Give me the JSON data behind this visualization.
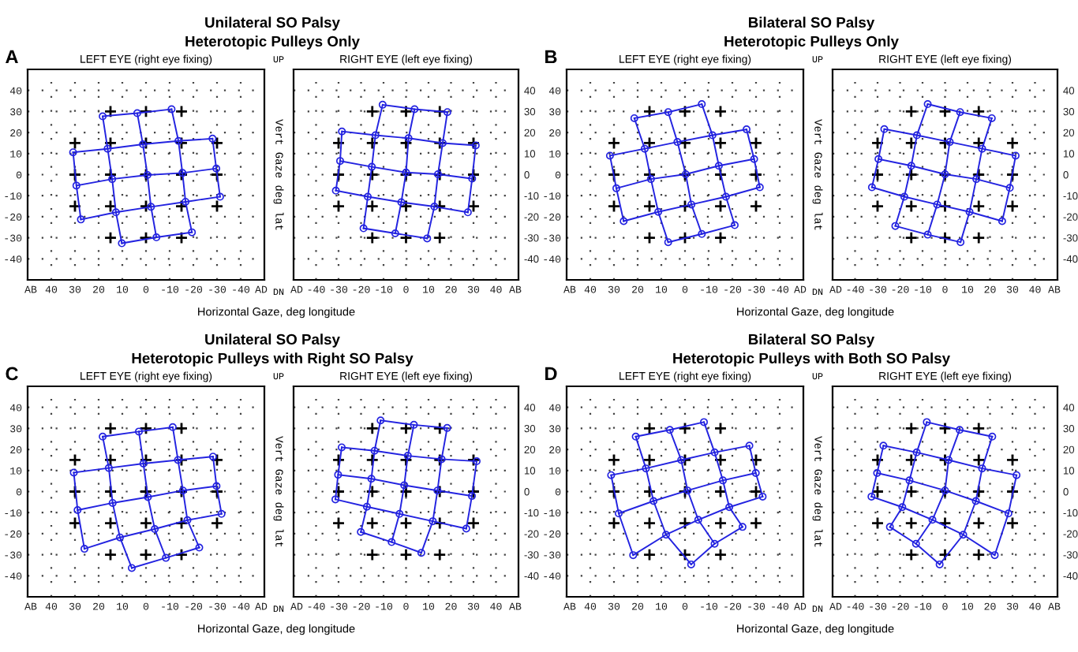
{
  "chart_data": [
    {
      "type": "line",
      "title": "LEFT EYE (right eye fixing)",
      "xlabel": "Horizontal Gaze, deg longitude",
      "annotations": [
        "A",
        "Unilateral SO Palsy",
        "Heterotopic Pulleys Only",
        "UP",
        "DN",
        "Vert Gaze deg lat",
        "AB",
        "AD"
      ],
      "xlim": [
        50,
        -50
      ],
      "xticks": [
        40,
        30,
        20,
        10,
        0,
        -10,
        -20,
        -30,
        -40
      ],
      "ylim": [
        -50,
        50
      ],
      "yticks": [
        40,
        30,
        20,
        10,
        0,
        -10,
        -20,
        -30,
        -40
      ],
      "grid": true,
      "series": [
        {
          "type": "scatter",
          "color": "#000000",
          "marker": "cross",
          "x": [
            15,
            0,
            -15,
            30,
            15,
            0,
            -15,
            -30,
            30,
            15,
            0,
            -15,
            -30,
            30,
            15,
            0,
            -15,
            -30,
            15,
            0,
            -15
          ],
          "values": [
            30,
            30,
            30,
            15,
            15,
            15,
            15,
            15,
            0,
            0,
            0,
            0,
            0,
            -15,
            -15,
            -15,
            -15,
            -15,
            -30,
            -30,
            -30
          ]
        },
        {
          "color": "#2323e0",
          "marker": "circle",
          "x": [
            18.3,
            3.7,
            -10.8
          ],
          "values": [
            27.7,
            29.2,
            31.1
          ]
        },
        {
          "color": "#2323e0",
          "marker": "circle",
          "x": [
            30.8,
            16.2,
            1.3,
            -13.7,
            -28.1
          ],
          "values": [
            10.6,
            12.3,
            14.4,
            16.0,
            17.1
          ]
        },
        {
          "color": "#2323e0",
          "marker": "circle",
          "x": [
            29.4,
            14.3,
            -0.6,
            -15.4,
            -29.7
          ],
          "values": [
            -5.2,
            -2.1,
            -0.2,
            0.8,
            2.9
          ]
        },
        {
          "color": "#2323e0",
          "marker": "circle",
          "x": [
            27.5,
            12.7,
            -2.1,
            -16.7,
            -31.3
          ],
          "values": [
            -21.3,
            -17.9,
            -15.3,
            -12.9,
            -10.5
          ]
        },
        {
          "color": "#2323e0",
          "marker": "circle",
          "x": [
            10.2,
            -4.4,
            -19.4
          ],
          "values": [
            -32.6,
            -29.8,
            -27.4
          ]
        },
        {
          "color": "#2323e0",
          "marker": "none",
          "x": [
            30.8,
            29.4,
            27.5
          ],
          "values": [
            10.6,
            -5.2,
            -21.3
          ]
        },
        {
          "color": "#2323e0",
          "marker": "none",
          "x": [
            18.3,
            16.2,
            14.3,
            12.7,
            10.2
          ],
          "values": [
            27.7,
            12.3,
            -2.1,
            -17.9,
            -32.6
          ]
        },
        {
          "color": "#2323e0",
          "marker": "none",
          "x": [
            3.7,
            1.3,
            -0.6,
            -2.1,
            -4.4
          ],
          "values": [
            29.2,
            14.4,
            -0.2,
            -15.3,
            -29.8
          ]
        },
        {
          "color": "#2323e0",
          "marker": "none",
          "x": [
            -10.8,
            -13.7,
            -15.4,
            -16.7,
            -19.4
          ],
          "values": [
            31.1,
            16.0,
            0.8,
            -12.9,
            -27.4
          ]
        },
        {
          "color": "#2323e0",
          "marker": "none",
          "x": [
            -28.1,
            -29.7,
            -31.3
          ],
          "values": [
            17.1,
            2.9,
            -10.5
          ]
        }
      ]
    },
    {
      "type": "line",
      "title": "RIGHT EYE (left eye fixing)",
      "annotations": [
        "AD",
        "AB"
      ],
      "xlim": [
        -50,
        50
      ],
      "xticks": [
        -40,
        -30,
        -20,
        -10,
        0,
        10,
        20,
        30,
        40
      ],
      "ylim": [
        -50,
        50
      ],
      "yticks": [
        40,
        30,
        20,
        10,
        0,
        -10,
        -20,
        -30,
        -40
      ],
      "grid": true,
      "series": [
        {
          "type": "scatter",
          "color": "#000000",
          "marker": "cross",
          "x": [
            -15,
            0,
            15,
            -30,
            -15,
            0,
            15,
            30,
            -30,
            -15,
            0,
            15,
            30,
            -30,
            -15,
            0,
            15,
            30,
            -15,
            0,
            15
          ],
          "values": [
            30,
            30,
            30,
            15,
            15,
            15,
            15,
            15,
            0,
            0,
            0,
            0,
            0,
            -15,
            -15,
            -15,
            -15,
            -15,
            -30,
            -30,
            -30
          ]
        },
        {
          "color": "#2323e0",
          "marker": "circle",
          "x": [
            -10.4,
            3.8,
            18.4
          ],
          "values": [
            33.2,
            31.1,
            29.7
          ]
        },
        {
          "color": "#2323e0",
          "marker": "circle",
          "x": [
            -28.5,
            -13.6,
            1.1,
            16.3,
            31.0
          ],
          "values": [
            20.5,
            18.7,
            17.3,
            15.0,
            13.9
          ]
        },
        {
          "color": "#2323e0",
          "marker": "circle",
          "x": [
            -29.3,
            -15.2,
            0,
            14.2,
            29.4
          ],
          "values": [
            6.5,
            3.7,
            1.0,
            0.2,
            -1.9
          ]
        },
        {
          "color": "#2323e0",
          "marker": "circle",
          "x": [
            -31.2,
            -17.0,
            -2.1,
            12.6,
            27.5
          ],
          "values": [
            -7.6,
            -10.5,
            -13.1,
            -15.2,
            -17.9
          ]
        },
        {
          "color": "#2323e0",
          "marker": "circle",
          "x": [
            -18.9,
            -4.8,
            9.4
          ],
          "values": [
            -25.5,
            -27.9,
            -30.3
          ]
        },
        {
          "color": "#2323e0",
          "marker": "none",
          "x": [
            -28.5,
            -29.3,
            -31.2
          ],
          "values": [
            20.5,
            6.5,
            -7.6
          ]
        },
        {
          "color": "#2323e0",
          "marker": "none",
          "x": [
            -10.4,
            -13.6,
            -15.2,
            -17.0,
            -18.9
          ],
          "values": [
            33.2,
            18.7,
            3.7,
            -10.5,
            -25.5
          ]
        },
        {
          "color": "#2323e0",
          "marker": "none",
          "x": [
            3.8,
            1.1,
            0,
            -2.1,
            -4.8
          ],
          "values": [
            31.1,
            17.3,
            1.0,
            -13.1,
            -27.9
          ]
        },
        {
          "color": "#2323e0",
          "marker": "none",
          "x": [
            18.4,
            16.3,
            14.2,
            12.6,
            9.4
          ],
          "values": [
            29.7,
            15.0,
            0.2,
            -15.2,
            -30.3
          ]
        },
        {
          "color": "#2323e0",
          "marker": "none",
          "x": [
            31.0,
            29.4,
            27.5
          ],
          "values": [
            13.9,
            -1.9,
            -17.9
          ]
        }
      ]
    },
    {
      "type": "line",
      "title": "LEFT EYE (right eye fixing)",
      "xlabel": "Horizontal Gaze, deg longitude",
      "annotations": [
        "B",
        "Bilateral SO Palsy",
        "Heterotopic Pulleys Only",
        "UP",
        "DN",
        "Vert Gaze deg lat",
        "AB",
        "AD"
      ],
      "xlim": [
        50,
        -50
      ],
      "xticks": [
        40,
        30,
        20,
        10,
        0,
        -10,
        -20,
        -30,
        -40
      ],
      "ylim": [
        -50,
        50
      ],
      "yticks": [
        40,
        30,
        20,
        10,
        0,
        -10,
        -20,
        -30,
        -40
      ],
      "grid": true,
      "series": [
        {
          "type": "scatter",
          "color": "#000000",
          "marker": "cross",
          "x": [
            15,
            0,
            -15,
            30,
            15,
            0,
            -15,
            -30,
            30,
            15,
            0,
            -15,
            -30,
            30,
            15,
            0,
            -15,
            -30,
            15,
            0,
            -15
          ],
          "values": [
            30,
            30,
            30,
            15,
            15,
            15,
            15,
            15,
            0,
            0,
            0,
            0,
            0,
            -15,
            -15,
            -15,
            -15,
            -15,
            -30,
            -30,
            -30
          ]
        },
        {
          "color": "#2323e0",
          "marker": "circle",
          "x": [
            21.4,
            7.1,
            -7.1
          ],
          "values": [
            26.8,
            29.7,
            33.5
          ]
        },
        {
          "color": "#2323e0",
          "marker": "circle",
          "x": [
            31.7,
            17.0,
            3.2,
            -11.6,
            -26.0
          ],
          "values": [
            9.0,
            12.3,
            15.5,
            18.7,
            21.5
          ]
        },
        {
          "color": "#2323e0",
          "marker": "circle",
          "x": [
            29.0,
            14.4,
            -0.3,
            -14.3,
            -29.2
          ],
          "values": [
            -6.5,
            -2.1,
            0.2,
            4.2,
            7.4
          ]
        },
        {
          "color": "#2323e0",
          "marker": "circle",
          "x": [
            25.9,
            11.3,
            -2.7,
            -17.3,
            -31.6
          ],
          "values": [
            -22.1,
            -17.7,
            -14.2,
            -10.5,
            -6.0
          ]
        },
        {
          "color": "#2323e0",
          "marker": "circle",
          "x": [
            7.1,
            -7.1,
            -21.0
          ],
          "values": [
            -32.1,
            -28.2,
            -24.0
          ]
        },
        {
          "color": "#2323e0",
          "marker": "none",
          "x": [
            31.7,
            29.0,
            25.9
          ],
          "values": [
            9.0,
            -6.5,
            -22.1
          ]
        },
        {
          "color": "#2323e0",
          "marker": "none",
          "x": [
            21.4,
            17.0,
            14.4,
            11.3,
            7.1
          ],
          "values": [
            26.8,
            12.3,
            -2.1,
            -17.7,
            -32.1
          ]
        },
        {
          "color": "#2323e0",
          "marker": "none",
          "x": [
            7.1,
            3.2,
            -0.3,
            -2.7,
            -7.1
          ],
          "values": [
            29.7,
            15.5,
            0.2,
            -14.2,
            -28.2
          ]
        },
        {
          "color": "#2323e0",
          "marker": "none",
          "x": [
            -7.1,
            -11.6,
            -14.3,
            -17.3,
            -21.0
          ],
          "values": [
            33.5,
            18.7,
            4.2,
            -10.5,
            -24.0
          ]
        },
        {
          "color": "#2323e0",
          "marker": "none",
          "x": [
            -26.0,
            -29.2,
            -31.6
          ],
          "values": [
            21.5,
            7.4,
            -6.0
          ]
        }
      ]
    },
    {
      "type": "line",
      "title": "RIGHT EYE (left eye fixing)",
      "annotations": [
        "AD",
        "AB"
      ],
      "xlim": [
        -50,
        50
      ],
      "xticks": [
        -40,
        -30,
        -20,
        -10,
        0,
        10,
        20,
        30,
        40
      ],
      "ylim": [
        -50,
        50
      ],
      "yticks": [
        40,
        30,
        20,
        10,
        0,
        -10,
        -20,
        -30,
        -40
      ],
      "grid": true,
      "series": [
        {
          "type": "scatter",
          "color": "#000000",
          "marker": "cross",
          "x": [
            -15,
            0,
            15,
            -30,
            -15,
            0,
            15,
            30,
            -30,
            -15,
            0,
            15,
            30,
            -30,
            -15,
            0,
            15,
            30,
            -15,
            0,
            15
          ],
          "values": [
            30,
            30,
            30,
            15,
            15,
            15,
            15,
            15,
            0,
            0,
            0,
            0,
            0,
            -15,
            -15,
            -15,
            -15,
            -15,
            -30,
            -30,
            -30
          ]
        },
        {
          "color": "#2323e0",
          "marker": "circle",
          "x": [
            -7.7,
            6.7,
            20.8
          ],
          "values": [
            33.5,
            29.7,
            26.8
          ]
        },
        {
          "color": "#2323e0",
          "marker": "circle",
          "x": [
            -27.0,
            -12.5,
            2.1,
            16.5,
            31.4
          ],
          "values": [
            21.6,
            18.7,
            15.5,
            12.3,
            9.0
          ]
        },
        {
          "color": "#2323e0",
          "marker": "circle",
          "x": [
            -29.6,
            -15.0,
            0,
            13.9,
            28.8
          ],
          "values": [
            7.4,
            4.2,
            0.2,
            -2.1,
            -6.3
          ]
        },
        {
          "color": "#2323e0",
          "marker": "circle",
          "x": [
            -32.5,
            -18.1,
            -3.5,
            10.9,
            25.4
          ],
          "values": [
            -6.0,
            -10.5,
            -14.2,
            -17.7,
            -22.1
          ]
        },
        {
          "color": "#2323e0",
          "marker": "circle",
          "x": [
            -22.1,
            -7.7,
            6.9
          ],
          "values": [
            -24.4,
            -28.5,
            -32.1
          ]
        },
        {
          "color": "#2323e0",
          "marker": "none",
          "x": [
            -27.0,
            -29.6,
            -32.5
          ],
          "values": [
            21.6,
            7.4,
            -6.0
          ]
        },
        {
          "color": "#2323e0",
          "marker": "none",
          "x": [
            -7.7,
            -12.5,
            -15.0,
            -18.1,
            -22.1
          ],
          "values": [
            33.5,
            18.7,
            4.2,
            -10.5,
            -24.4
          ]
        },
        {
          "color": "#2323e0",
          "marker": "none",
          "x": [
            6.7,
            2.1,
            0,
            -3.5,
            -7.7
          ],
          "values": [
            29.7,
            15.5,
            0.2,
            -14.2,
            -28.5
          ]
        },
        {
          "color": "#2323e0",
          "marker": "none",
          "x": [
            20.8,
            16.5,
            13.9,
            10.9,
            6.9
          ],
          "values": [
            26.8,
            12.3,
            -2.1,
            -17.7,
            -32.1
          ]
        },
        {
          "color": "#2323e0",
          "marker": "none",
          "x": [
            31.4,
            28.8,
            25.4
          ],
          "values": [
            9.0,
            -6.3,
            -22.1
          ]
        }
      ]
    },
    {
      "type": "line",
      "title": "LEFT EYE (right eye fixing)",
      "xlabel": "Horizontal Gaze, deg longitude",
      "annotations": [
        "C",
        "Unilateral SO Palsy",
        "Heterotopic Pulleys with Right SO Palsy",
        "UP",
        "DN",
        "Vert Gaze deg lat",
        "AB",
        "AD"
      ],
      "xlim": [
        50,
        -50
      ],
      "xticks": [
        40,
        30,
        20,
        10,
        0,
        -10,
        -20,
        -30,
        -40
      ],
      "ylim": [
        -50,
        50
      ],
      "yticks": [
        40,
        30,
        20,
        10,
        0,
        -10,
        -20,
        -30,
        -40
      ],
      "grid": true,
      "series": [
        {
          "type": "scatter",
          "color": "#000000",
          "marker": "cross",
          "x": [
            15,
            0,
            -15,
            30,
            15,
            0,
            -15,
            -30,
            30,
            15,
            0,
            -15,
            -30,
            30,
            15,
            0,
            -15,
            -30,
            15,
            0,
            -15
          ],
          "values": [
            30,
            30,
            30,
            15,
            15,
            15,
            15,
            15,
            0,
            0,
            0,
            0,
            0,
            -15,
            -15,
            -15,
            -15,
            -15,
            -30,
            -30,
            -30
          ]
        },
        {
          "color": "#2323e0",
          "marker": "circle",
          "x": [
            18.3,
            3.0,
            -11.3
          ],
          "values": [
            26.1,
            28.5,
            30.6
          ]
        },
        {
          "color": "#2323e0",
          "marker": "circle",
          "x": [
            30.5,
            15.7,
            1.1,
            -13.5,
            -28.3
          ],
          "values": [
            9.0,
            11.2,
            13.3,
            15.0,
            16.6
          ]
        },
        {
          "color": "#2323e0",
          "marker": "circle",
          "x": [
            28.9,
            14.1,
            -0.8,
            -15.6,
            -29.8
          ],
          "values": [
            -8.8,
            -5.4,
            -2.6,
            0.5,
            2.6
          ]
        },
        {
          "color": "#2323e0",
          "marker": "circle",
          "x": [
            26.0,
            11.0,
            -3.7,
            -17.5,
            -31.9
          ],
          "values": [
            -27.2,
            -21.8,
            -17.8,
            -13.6,
            -10.6
          ]
        },
        {
          "color": "#2323e0",
          "marker": "circle",
          "x": [
            6.0,
            -8.4,
            -22.5
          ],
          "values": [
            -36.3,
            -31.5,
            -26.6
          ]
        },
        {
          "color": "#2323e0",
          "marker": "none",
          "x": [
            30.5,
            28.9,
            26.0
          ],
          "values": [
            9.0,
            -8.8,
            -27.2
          ]
        },
        {
          "color": "#2323e0",
          "marker": "none",
          "x": [
            18.3,
            15.7,
            14.1,
            11.0,
            6.0
          ],
          "values": [
            26.1,
            11.2,
            -5.4,
            -21.8,
            -36.3
          ]
        },
        {
          "color": "#2323e0",
          "marker": "none",
          "x": [
            3.0,
            1.1,
            -0.8,
            -3.7,
            -8.4
          ],
          "values": [
            28.5,
            13.3,
            -2.6,
            -17.8,
            -31.5
          ]
        },
        {
          "color": "#2323e0",
          "marker": "none",
          "x": [
            -11.3,
            -13.5,
            -15.6,
            -17.5,
            -22.5
          ],
          "values": [
            30.6,
            15.0,
            0.5,
            -13.6,
            -26.6
          ]
        },
        {
          "color": "#2323e0",
          "marker": "none",
          "x": [
            -28.3,
            -29.8,
            -31.9
          ],
          "values": [
            16.6,
            2.6,
            -10.6
          ]
        }
      ]
    },
    {
      "type": "line",
      "title": "RIGHT EYE (left eye fixing)",
      "annotations": [
        "AD",
        "AB"
      ],
      "xlim": [
        -50,
        50
      ],
      "xticks": [
        -40,
        -30,
        -20,
        -10,
        0,
        10,
        20,
        30,
        40
      ],
      "ylim": [
        -50,
        50
      ],
      "yticks": [
        40,
        30,
        20,
        10,
        0,
        -10,
        -20,
        -30,
        -40
      ],
      "grid": true,
      "series": [
        {
          "type": "scatter",
          "color": "#000000",
          "marker": "cross",
          "x": [
            -15,
            0,
            15,
            -30,
            -15,
            0,
            15,
            30,
            -30,
            -15,
            0,
            15,
            30,
            -30,
            -15,
            0,
            15,
            30,
            -15,
            0,
            15
          ],
          "values": [
            30,
            30,
            30,
            15,
            15,
            15,
            15,
            15,
            0,
            0,
            0,
            0,
            0,
            -15,
            -15,
            -15,
            -15,
            -15,
            -30,
            -30,
            -30
          ]
        },
        {
          "color": "#2323e0",
          "marker": "circle",
          "x": [
            -11.3,
            3.5,
            18.3
          ],
          "values": [
            33.8,
            31.7,
            30.2
          ]
        },
        {
          "color": "#2323e0",
          "marker": "circle",
          "x": [
            -28.6,
            -14.0,
            0.8,
            15.8,
            31.4
          ],
          "values": [
            21.0,
            19.4,
            17.0,
            15.4,
            14.4
          ]
        },
        {
          "color": "#2323e0",
          "marker": "circle",
          "x": [
            -30.2,
            -15.4,
            -0.8,
            14.0,
            29.3
          ],
          "values": [
            8.0,
            6.1,
            3.0,
            0.5,
            -2.1
          ]
        },
        {
          "color": "#2323e0",
          "marker": "circle",
          "x": [
            -31.4,
            -17.4,
            -2.9,
            11.9,
            26.8
          ],
          "values": [
            -3.7,
            -7.2,
            -10.6,
            -14.1,
            -17.6
          ]
        },
        {
          "color": "#2323e0",
          "marker": "circle",
          "x": [
            -20.1,
            -6.4,
            6.8
          ],
          "values": [
            -19.2,
            -24.0,
            -29.1
          ]
        },
        {
          "color": "#2323e0",
          "marker": "none",
          "x": [
            -28.6,
            -30.2,
            -31.4
          ],
          "values": [
            21.0,
            8.0,
            -3.7
          ]
        },
        {
          "color": "#2323e0",
          "marker": "none",
          "x": [
            -11.3,
            -14.0,
            -15.4,
            -17.4,
            -20.1
          ],
          "values": [
            33.8,
            19.4,
            6.1,
            -7.2,
            -19.2
          ]
        },
        {
          "color": "#2323e0",
          "marker": "none",
          "x": [
            3.5,
            0.8,
            -0.8,
            -2.9,
            -6.4
          ],
          "values": [
            31.7,
            17.0,
            3.0,
            -10.6,
            -24.0
          ]
        },
        {
          "color": "#2323e0",
          "marker": "none",
          "x": [
            18.3,
            15.8,
            14.0,
            11.9,
            6.8
          ],
          "values": [
            30.2,
            15.4,
            0.5,
            -14.1,
            -29.1
          ]
        },
        {
          "color": "#2323e0",
          "marker": "none",
          "x": [
            31.4,
            29.3,
            26.8
          ],
          "values": [
            14.4,
            -2.1,
            -17.6
          ]
        }
      ]
    },
    {
      "type": "line",
      "title": "LEFT EYE (right eye fixing)",
      "xlabel": "Horizontal Gaze, deg longitude",
      "annotations": [
        "D",
        "Bilateral SO Palsy",
        "Heterotopic Pulleys with Both SO Palsy",
        "UP",
        "DN",
        "Vert Gaze deg lat",
        "AB",
        "AD"
      ],
      "xlim": [
        50,
        -50
      ],
      "xticks": [
        40,
        30,
        20,
        10,
        0,
        -10,
        -20,
        -30,
        -40
      ],
      "ylim": [
        -50,
        50
      ],
      "yticks": [
        40,
        30,
        20,
        10,
        0,
        -10,
        -20,
        -30,
        -40
      ],
      "grid": true,
      "series": [
        {
          "type": "scatter",
          "color": "#000000",
          "marker": "cross",
          "x": [
            15,
            0,
            -15,
            30,
            15,
            0,
            -15,
            -30,
            30,
            15,
            0,
            -15,
            -30,
            30,
            15,
            0,
            -15,
            -30,
            15,
            0,
            -15
          ],
          "values": [
            30,
            30,
            30,
            15,
            15,
            15,
            15,
            15,
            0,
            0,
            0,
            0,
            0,
            -15,
            -15,
            -15,
            -15,
            -15,
            -30,
            -30,
            -30
          ]
        },
        {
          "color": "#2323e0",
          "marker": "circle",
          "x": [
            20.8,
            6.4,
            -8.0
          ],
          "values": [
            26.1,
            29.3,
            33.0
          ]
        },
        {
          "color": "#2323e0",
          "marker": "circle",
          "x": [
            31.2,
            16.5,
            1.6,
            -12.5,
            -27.2
          ],
          "values": [
            7.8,
            11.0,
            15.0,
            18.6,
            21.8
          ]
        },
        {
          "color": "#2323e0",
          "marker": "circle",
          "x": [
            28.0,
            13.3,
            -1.1,
            -16.0,
            -29.9
          ],
          "values": [
            -10.4,
            -4.5,
            0.5,
            5.3,
            8.8
          ]
        },
        {
          "color": "#2323e0",
          "marker": "circle",
          "x": [
            21.9,
            8.0,
            -5.6,
            -18.7,
            -32.8
          ],
          "values": [
            -30.2,
            -20.5,
            -13.4,
            -7.4,
            -2.4
          ]
        },
        {
          "color": "#2323e0",
          "marker": "circle",
          "x": [
            -2.6,
            -12.5,
            -24.3
          ],
          "values": [
            -34.6,
            -24.8,
            -16.8
          ]
        },
        {
          "color": "#2323e0",
          "marker": "none",
          "x": [
            31.2,
            28.0,
            21.9
          ],
          "values": [
            7.8,
            -10.4,
            -30.2
          ]
        },
        {
          "color": "#2323e0",
          "marker": "none",
          "x": [
            20.8,
            16.5,
            13.3,
            8.0,
            -2.6
          ],
          "values": [
            26.1,
            11.0,
            -4.5,
            -20.5,
            -34.6
          ]
        },
        {
          "color": "#2323e0",
          "marker": "none",
          "x": [
            6.4,
            1.6,
            -1.1,
            -5.6,
            -12.5
          ],
          "values": [
            29.3,
            15.0,
            0.5,
            -13.4,
            -24.8
          ]
        },
        {
          "color": "#2323e0",
          "marker": "none",
          "x": [
            -8.0,
            -12.5,
            -16.0,
            -18.7,
            -24.3
          ],
          "values": [
            33.0,
            18.6,
            5.3,
            -7.4,
            -16.8
          ]
        },
        {
          "color": "#2323e0",
          "marker": "none",
          "x": [
            -27.2,
            -29.9,
            -32.8
          ],
          "values": [
            21.8,
            8.8,
            -2.4
          ]
        }
      ]
    },
    {
      "type": "line",
      "title": "RIGHT EYE (left eye fixing)",
      "annotations": [
        "AD",
        "AB"
      ],
      "xlim": [
        -50,
        50
      ],
      "xticks": [
        -40,
        -30,
        -20,
        -10,
        0,
        10,
        20,
        30,
        40
      ],
      "ylim": [
        -50,
        50
      ],
      "yticks": [
        40,
        30,
        20,
        10,
        0,
        -10,
        -20,
        -30,
        -40
      ],
      "grid": true,
      "series": [
        {
          "type": "scatter",
          "color": "#000000",
          "marker": "cross",
          "x": [
            -15,
            0,
            15,
            -30,
            -15,
            0,
            15,
            30,
            -30,
            -15,
            0,
            15,
            30,
            -30,
            -15,
            0,
            15,
            30,
            -15,
            0,
            15
          ],
          "values": [
            30,
            30,
            30,
            15,
            15,
            15,
            15,
            15,
            0,
            0,
            0,
            0,
            0,
            -15,
            -15,
            -15,
            -15,
            -15,
            -30,
            -30,
            -30
          ]
        },
        {
          "color": "#2323e0",
          "marker": "circle",
          "x": [
            -8.1,
            6.5,
            21.0
          ],
          "values": [
            33.0,
            29.3,
            26.1
          ]
        },
        {
          "color": "#2323e0",
          "marker": "circle",
          "x": [
            -27.4,
            -12.6,
            1.6,
            16.5,
            31.8
          ],
          "values": [
            21.8,
            18.6,
            15.0,
            11.0,
            7.8
          ]
        },
        {
          "color": "#2323e0",
          "marker": "circle",
          "x": [
            -30.2,
            -15.8,
            0,
            13.7,
            28.2
          ],
          "values": [
            8.8,
            5.3,
            0.5,
            -4.5,
            -10.4
          ]
        },
        {
          "color": "#2323e0",
          "marker": "circle",
          "x": [
            -32.7,
            -19.0,
            -5.6,
            8.1,
            22.1
          ],
          "values": [
            -2.4,
            -7.4,
            -13.4,
            -20.5,
            -30.2
          ]
        },
        {
          "color": "#2323e0",
          "marker": "circle",
          "x": [
            -24.5,
            -12.9,
            -2.4
          ],
          "values": [
            -16.8,
            -24.8,
            -34.6
          ]
        },
        {
          "color": "#2323e0",
          "marker": "none",
          "x": [
            -27.4,
            -30.2,
            -32.7
          ],
          "values": [
            21.8,
            8.8,
            -2.4
          ]
        },
        {
          "color": "#2323e0",
          "marker": "none",
          "x": [
            -8.1,
            -12.6,
            -15.8,
            -19.0,
            -24.5
          ],
          "values": [
            33.0,
            18.6,
            5.3,
            -7.4,
            -16.8
          ]
        },
        {
          "color": "#2323e0",
          "marker": "none",
          "x": [
            6.5,
            1.6,
            0,
            -5.6,
            -12.9
          ],
          "values": [
            29.3,
            15.0,
            0.5,
            -13.4,
            -24.8
          ]
        },
        {
          "color": "#2323e0",
          "marker": "none",
          "x": [
            21.0,
            16.5,
            13.7,
            8.1,
            -2.4
          ],
          "values": [
            26.1,
            11.0,
            -4.5,
            -20.5,
            -34.6
          ]
        },
        {
          "color": "#2323e0",
          "marker": "none",
          "x": [
            31.8,
            28.2,
            22.1
          ],
          "values": [
            7.8,
            -10.4,
            -30.2
          ]
        }
      ]
    }
  ]
}
